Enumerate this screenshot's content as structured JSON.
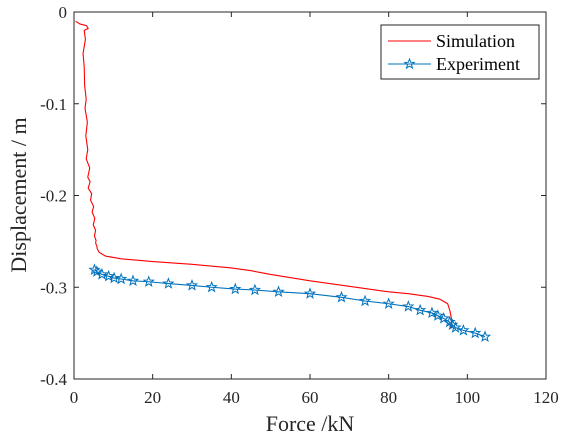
{
  "chart_data": {
    "type": "line",
    "xlabel": "Force /kN",
    "ylabel": "Displacement / m",
    "xlim": [
      0,
      120
    ],
    "ylim": [
      -0.4,
      0
    ],
    "xticks": [
      0,
      20,
      40,
      60,
      80,
      100,
      120
    ],
    "yticks": [
      -0.4,
      -0.3,
      -0.2,
      -0.1,
      0
    ],
    "ytick_labels": [
      "-0.4",
      "-0.3",
      "-0.2",
      "-0.1",
      "0"
    ],
    "xtick_labels": [
      "0",
      "20",
      "40",
      "60",
      "80",
      "100",
      "120"
    ],
    "grid": false,
    "legend_position": "top-right",
    "series": [
      {
        "name": "Simulation",
        "color": "#ff0000",
        "marker": "none",
        "x": [
          0.4,
          1.5,
          3.2,
          3.6,
          2.6,
          2.9,
          2.3,
          2.6,
          2.7,
          3.1,
          2.8,
          3.4,
          3.0,
          3.5,
          3.1,
          4.0,
          3.5,
          4.1,
          3.6,
          4.5,
          4.2,
          5.0,
          4.6,
          5.3,
          4.9,
          5.5,
          5.2,
          5.6,
          5.5,
          5.8,
          5.9,
          6.4,
          8.0,
          12.0,
          20.0,
          30.0,
          40.0,
          45.0,
          50.0,
          60.0,
          70.0,
          80.0,
          85.0,
          90.0,
          93.0,
          95.0,
          95.6,
          96.0,
          95.8
        ],
        "y": [
          -0.01,
          -0.013,
          -0.015,
          -0.018,
          -0.02,
          -0.03,
          -0.045,
          -0.06,
          -0.08,
          -0.095,
          -0.105,
          -0.12,
          -0.135,
          -0.15,
          -0.16,
          -0.17,
          -0.18,
          -0.185,
          -0.192,
          -0.198,
          -0.205,
          -0.212,
          -0.218,
          -0.225,
          -0.232,
          -0.238,
          -0.244,
          -0.249,
          -0.252,
          -0.255,
          -0.258,
          -0.262,
          -0.266,
          -0.269,
          -0.272,
          -0.275,
          -0.279,
          -0.282,
          -0.286,
          -0.293,
          -0.299,
          -0.305,
          -0.307,
          -0.31,
          -0.313,
          -0.318,
          -0.326,
          -0.335,
          -0.345
        ]
      },
      {
        "name": "Experiment",
        "color": "#0072bd",
        "marker": "star",
        "x": [
          5.2,
          5.8,
          7.1,
          8.8,
          10.2,
          12.0,
          15.0,
          19.0,
          24.0,
          30.0,
          35.0,
          41.0,
          46.0,
          52.0,
          60.0,
          68.0,
          74.0,
          80.0,
          85.0,
          88.0,
          91.0,
          92.5,
          94.0,
          95.5,
          96.2,
          97.0,
          99.0,
          102.0,
          104.5
        ],
        "y": [
          -0.281,
          -0.283,
          -0.286,
          -0.288,
          -0.29,
          -0.291,
          -0.293,
          -0.294,
          -0.296,
          -0.298,
          -0.3,
          -0.302,
          -0.303,
          -0.305,
          -0.307,
          -0.311,
          -0.315,
          -0.318,
          -0.321,
          -0.325,
          -0.328,
          -0.331,
          -0.334,
          -0.338,
          -0.341,
          -0.344,
          -0.347,
          -0.35,
          -0.354
        ]
      }
    ]
  }
}
